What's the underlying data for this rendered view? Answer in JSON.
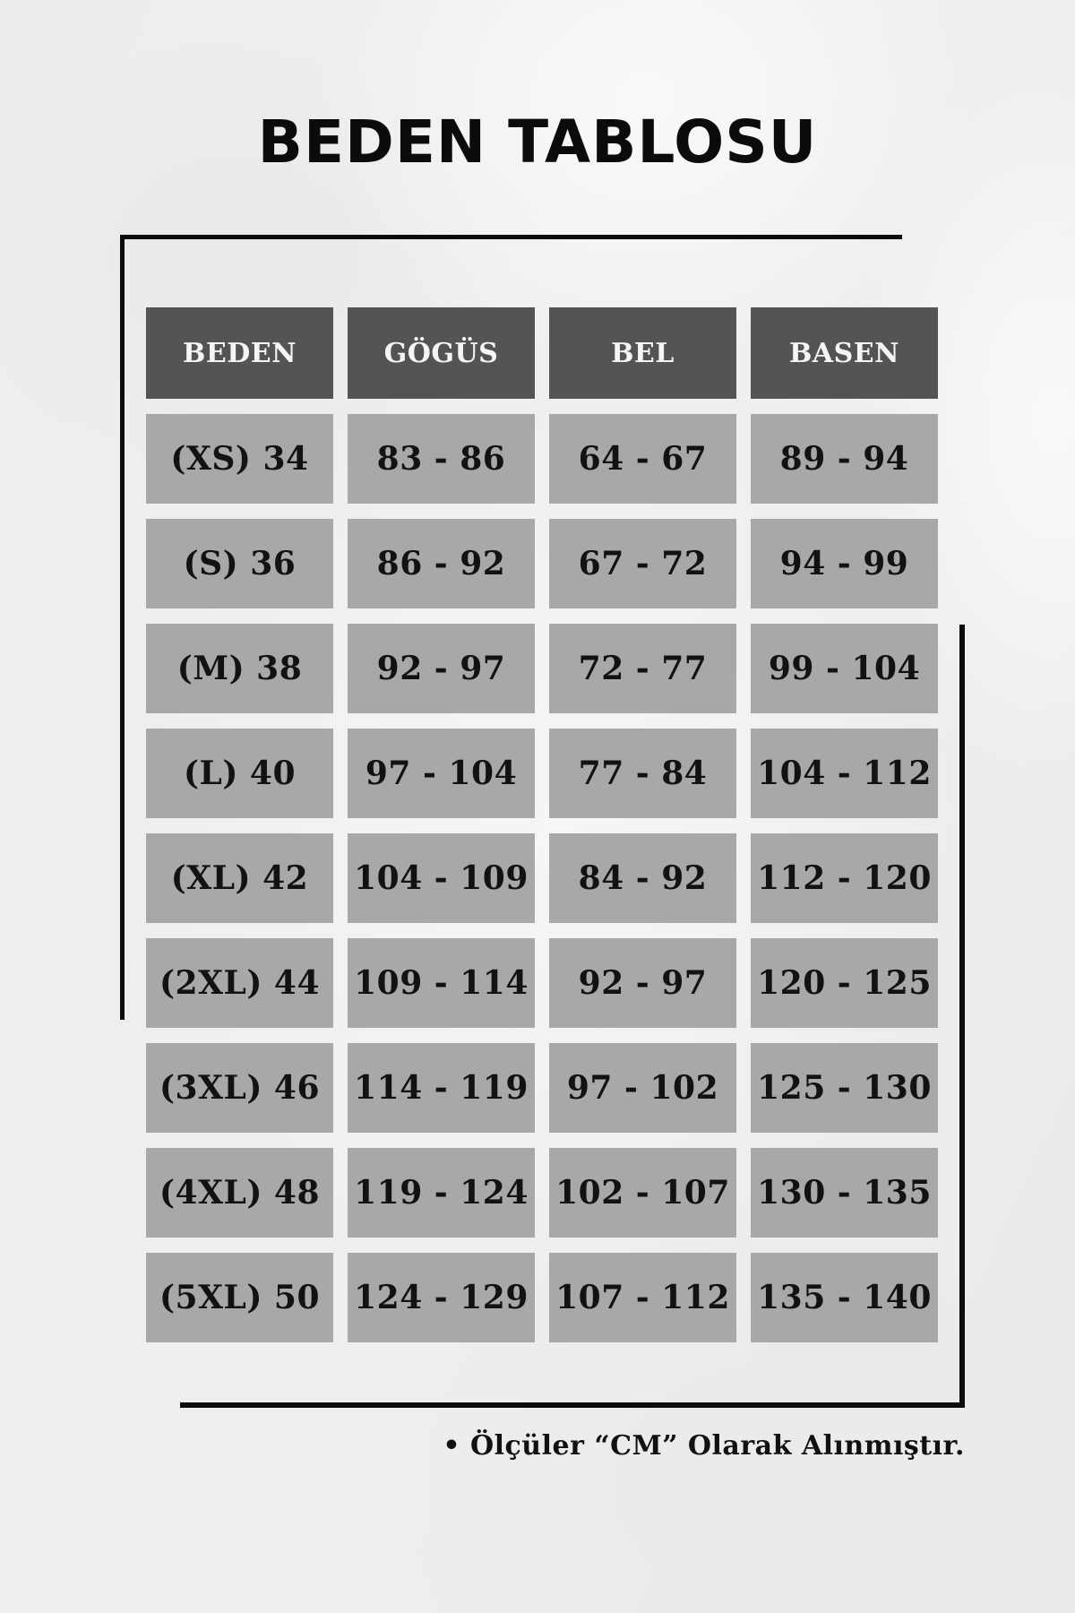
{
  "chart_data": {
    "type": "table",
    "title": "BEDEN TABLOSU",
    "columns": [
      "BEDEN",
      "GÖGÜS",
      "BEL",
      "BASEN"
    ],
    "rows": [
      [
        "(XS) 34",
        "83 - 86",
        "64 - 67",
        "89 - 94"
      ],
      [
        "(S) 36",
        "86 - 92",
        "67 - 72",
        "94 - 99"
      ],
      [
        "(M) 38",
        "92 - 97",
        "72 - 77",
        "99 - 104"
      ],
      [
        "(L) 40",
        "97 - 104",
        "77 - 84",
        "104 - 112"
      ],
      [
        "(XL) 42",
        "104 - 109",
        "84 - 92",
        "112 - 120"
      ],
      [
        "(2XL) 44",
        "109 - 114",
        "92 - 97",
        "120 - 125"
      ],
      [
        "(3XL) 46",
        "114 - 119",
        "97 - 102",
        "125 - 130"
      ],
      [
        "(4XL) 48",
        "119 - 124",
        "102 - 107",
        "130 - 135"
      ],
      [
        "(5XL) 50",
        "124 - 129",
        "107 - 112",
        "135 - 140"
      ]
    ],
    "note": "• Ölçüler “CM” Olarak Alınmıştır.",
    "layout_hints": {
      "header_row": true,
      "grid": "separated-cells",
      "note_position": "bottom-right"
    }
  },
  "colors": {
    "bg_base": "#eeedec",
    "header_bg": "#565453",
    "header_text": "#f6f5f3",
    "cell_bg": "#a9a8a6",
    "cell_text": "#121212",
    "frame": "#0c0c0c",
    "title_text": "#0b0b0b"
  }
}
